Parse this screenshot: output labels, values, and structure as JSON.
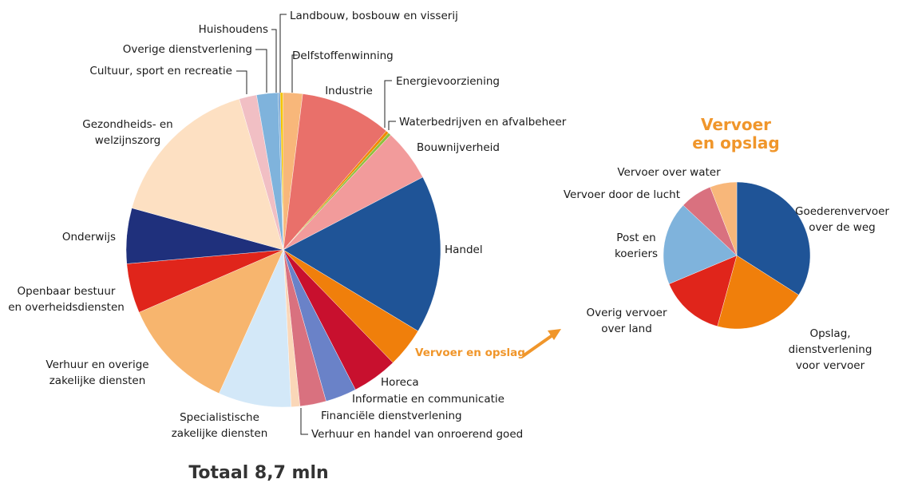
{
  "chart_data": [
    {
      "type": "pie",
      "caption": "Totaal 8,7 mln",
      "categories": [
        "Landbouw, bosbouw en visserij",
        "Delfstoffenwinning",
        "Industrie",
        "Energievoorziening",
        "Waterbedrijven en afvalbeheer",
        "Bouwnijverheid",
        "Handel",
        "Vervoer en opslag",
        "Horeca",
        "Informatie en communicatie",
        "Financiële dienstverlening",
        "Verhuur en handel van onroerend goed",
        "Specialistische\nzakelijke diensten",
        "Verhuur en overige\nzakelijke diensten",
        "Openbaar bestuur\nen overheidsdiensten",
        "Onderwijs",
        "Gezondheids- en\nwelzijnszorg",
        "Cultuur, sport en recreatie",
        "Overige dienstverlening",
        "Huishoudens"
      ],
      "values": [
        0.3,
        2,
        9.4,
        0.3,
        0.3,
        5.4,
        16.3,
        4.1,
        4.7,
        3.2,
        2.7,
        0.9,
        7.5,
        11.8,
        5.1,
        5.7,
        16.2,
        1.8,
        2.2,
        0.2
      ],
      "colors": [
        "#f5c400",
        "#f8b77a",
        "#e9706a",
        "#f08a00",
        "#8fbf3f",
        "#f29b9b",
        "#1f5497",
        "#f07f0b",
        "#c8102e",
        "#6a82c8",
        "#d9717f",
        "#fad7b8",
        "#d3e8f8",
        "#f7b56e",
        "#e0251b",
        "#1f307c",
        "#fde0c2",
        "#f1bfc4",
        "#7fb3dc",
        "#7aa6d4"
      ]
    },
    {
      "type": "pie",
      "title": "Vervoer\nen opslag",
      "categories": [
        "Goederenvervoer\nover de weg",
        "Opslag, dienstverlening\nvoor vervoer",
        "Overig vervoer\nover land",
        "Post en\nkoeriers",
        "Vervoer door de lucht",
        "Vervoer over water"
      ],
      "values": [
        34,
        20.2,
        14.4,
        18.3,
        7.1,
        5.9
      ],
      "colors": [
        "#1f5497",
        "#f07f0b",
        "#e0251b",
        "#7fb3dc",
        "#d9717f",
        "#f8b77a"
      ]
    }
  ]
}
